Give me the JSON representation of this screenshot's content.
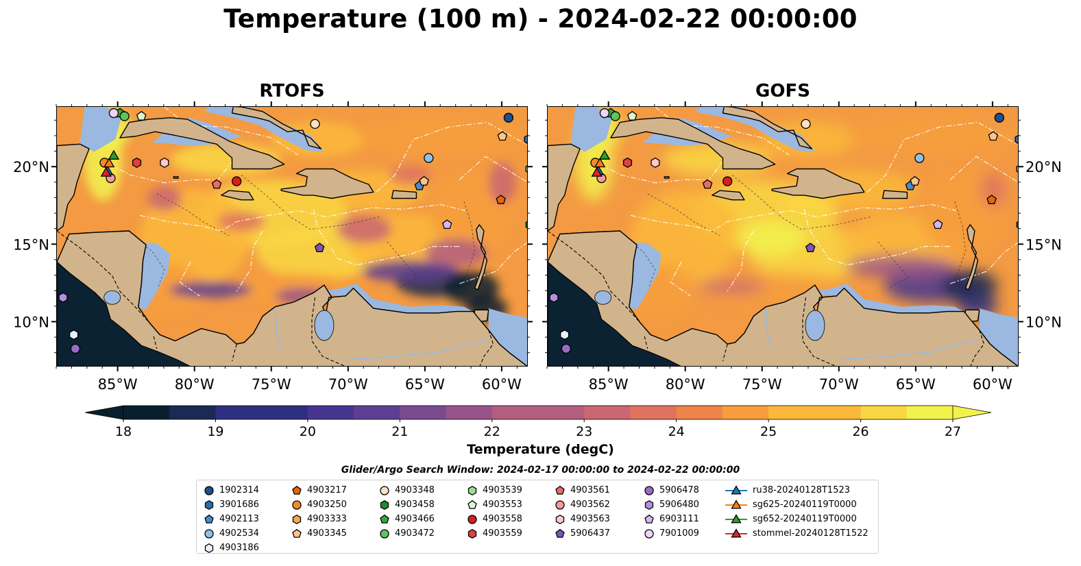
{
  "title": "Temperature (100 m) - 2024-02-22 00:00:00",
  "panels": [
    {
      "title": "RTOFS",
      "model": "rtofs"
    },
    {
      "title": "GOFS",
      "model": "gofs"
    }
  ],
  "axes": {
    "lon_labels": [
      "85°W",
      "80°W",
      "75°W",
      "70°W",
      "65°W",
      "60°W"
    ],
    "lon_values": [
      -85,
      -80,
      -75,
      -70,
      -65,
      -60
    ],
    "lat_labels": [
      "20°N",
      "15°N",
      "10°N"
    ],
    "lat_values": [
      20,
      15,
      10
    ],
    "lon_range": [
      -89,
      -58.3
    ],
    "lat_range": [
      7.1,
      23.9
    ]
  },
  "colorbar": {
    "label": "Temperature (degC)",
    "ticks": [
      "18",
      "19",
      "20",
      "21",
      "22",
      "23",
      "24",
      "25",
      "26",
      "27"
    ],
    "range": [
      18,
      27
    ],
    "extend": "both",
    "colormap": [
      "#0a1f2e",
      "#1b2a52",
      "#2e2f80",
      "#45358f",
      "#5c3f92",
      "#7a4a8f",
      "#975488",
      "#b25e7f",
      "#c96772",
      "#de7360",
      "#ee8449",
      "#f79d3d",
      "#fbb83b",
      "#f9d743",
      "#f2f24d"
    ]
  },
  "search_window": "Glider/Argo Search Window: 2024-02-17 00:00:00 to 2024-02-22 00:00:00",
  "legend": [
    {
      "label": "1902314",
      "marker": "circle",
      "color": "#1f4f8f"
    },
    {
      "label": "3901686",
      "marker": "hexagon",
      "color": "#2a6fa8"
    },
    {
      "label": "4902113",
      "marker": "pentagon",
      "color": "#4a8cc4"
    },
    {
      "label": "4902534",
      "marker": "circle",
      "color": "#8ec1ea"
    },
    {
      "label": "4903186",
      "marker": "hexagon",
      "color": "#e6f1fb"
    },
    {
      "label": "4903217",
      "marker": "pentagon",
      "color": "#e8650a"
    },
    {
      "label": "4903250",
      "marker": "circle",
      "color": "#f28b2a"
    },
    {
      "label": "4903333",
      "marker": "hexagon",
      "color": "#f7a650"
    },
    {
      "label": "4903345",
      "marker": "pentagon",
      "color": "#fbc58b"
    },
    {
      "label": "4903348",
      "marker": "circle",
      "color": "#fde0c2"
    },
    {
      "label": "4903458",
      "marker": "hexagon",
      "color": "#1e8c2a"
    },
    {
      "label": "4903466",
      "marker": "pentagon",
      "color": "#35a840"
    },
    {
      "label": "4903472",
      "marker": "circle",
      "color": "#5ec45e"
    },
    {
      "label": "4903539",
      "marker": "hexagon",
      "color": "#9bdc8f"
    },
    {
      "label": "4903553",
      "marker": "pentagon",
      "color": "#daf5cf"
    },
    {
      "label": "4903558",
      "marker": "circle",
      "color": "#d62020"
    },
    {
      "label": "4903559",
      "marker": "hexagon",
      "color": "#e04040"
    },
    {
      "label": "4903561",
      "marker": "pentagon",
      "color": "#e86a6a"
    },
    {
      "label": "4903562",
      "marker": "circle",
      "color": "#f49a9a"
    },
    {
      "label": "4903563",
      "marker": "hexagon",
      "color": "#fcc9c9"
    },
    {
      "label": "5906437",
      "marker": "pentagon",
      "color": "#7b55b5"
    },
    {
      "label": "5906478",
      "marker": "circle",
      "color": "#9a6cc9"
    },
    {
      "label": "5906480",
      "marker": "hexagon",
      "color": "#b48ee0"
    },
    {
      "label": "6903111",
      "marker": "pentagon",
      "color": "#d3b7ef"
    },
    {
      "label": "7901009",
      "marker": "circle",
      "color": "#eed6fb"
    },
    {
      "label": "ru38-20240128T1523",
      "marker": "triangle",
      "color": "#1f77b4"
    },
    {
      "label": "sg625-20240119T0000",
      "marker": "triangle",
      "color": "#ff7f0e"
    },
    {
      "label": "sg652-20240119T0000",
      "marker": "triangle",
      "color": "#2ca02c"
    },
    {
      "label": "stommel-20240128T1522",
      "marker": "triangle",
      "color": "#d62728"
    }
  ],
  "floats": [
    {
      "id": "1902314",
      "lon": -59.6,
      "lat": 23.2
    },
    {
      "id": "3901686",
      "lon": -58.3,
      "lat": 21.8
    },
    {
      "id": "4902113",
      "lon": -65.4,
      "lat": 18.8
    },
    {
      "id": "4902534",
      "lon": -64.8,
      "lat": 20.6
    },
    {
      "id": "4903186",
      "lon": -87.9,
      "lat": 9.2
    },
    {
      "id": "4903217",
      "lon": -60.1,
      "lat": 17.9
    },
    {
      "id": "4903250",
      "lon": -85.9,
      "lat": 20.3
    },
    {
      "id": "4903333",
      "lon": -58.2,
      "lat": 19.9
    },
    {
      "id": "4903345",
      "lon": -65.1,
      "lat": 19.1
    },
    {
      "id": "4903348",
      "lon": -72.2,
      "lat": 22.8
    },
    {
      "id": "4903458",
      "lon": -58.2,
      "lat": 16.3
    },
    {
      "id": "4903466",
      "lon": -84.9,
      "lat": 23.5
    },
    {
      "id": "4903472",
      "lon": -84.6,
      "lat": 23.3
    },
    {
      "id": "4903539",
      "lon": -58.2,
      "lat": 19.9
    },
    {
      "id": "4903553",
      "lon": -83.5,
      "lat": 23.3
    },
    {
      "id": "4903558",
      "lon": -77.3,
      "lat": 19.1
    },
    {
      "id": "4903559",
      "lon": -83.8,
      "lat": 20.3
    },
    {
      "id": "4903561",
      "lon": -78.6,
      "lat": 18.9
    },
    {
      "id": "4903562",
      "lon": -85.5,
      "lat": 19.3
    },
    {
      "id": "4903563",
      "lon": -82.0,
      "lat": 20.3
    },
    {
      "id": "5906437",
      "lon": -71.9,
      "lat": 14.8
    },
    {
      "id": "5906478",
      "lon": -87.8,
      "lat": 8.3
    },
    {
      "id": "5906480",
      "lon": -88.6,
      "lat": 11.6
    },
    {
      "id": "6903111",
      "lon": -63.6,
      "lat": 16.3
    },
    {
      "id": "7901009",
      "lon": -85.3,
      "lat": 23.5
    },
    {
      "id": "1902314b",
      "lon": -60.0,
      "lat": 22.0
    }
  ],
  "gliders": [
    {
      "id": "ru38-20240128T1523",
      "lon": -85.7,
      "lat": 19.8
    },
    {
      "id": "sg625-20240119T0000",
      "lon": -85.6,
      "lat": 20.3
    },
    {
      "id": "sg652-20240119T0000",
      "lon": -85.3,
      "lat": 20.8
    },
    {
      "id": "stommel-20240128T1522",
      "lon": -85.8,
      "lat": 19.7
    }
  ]
}
